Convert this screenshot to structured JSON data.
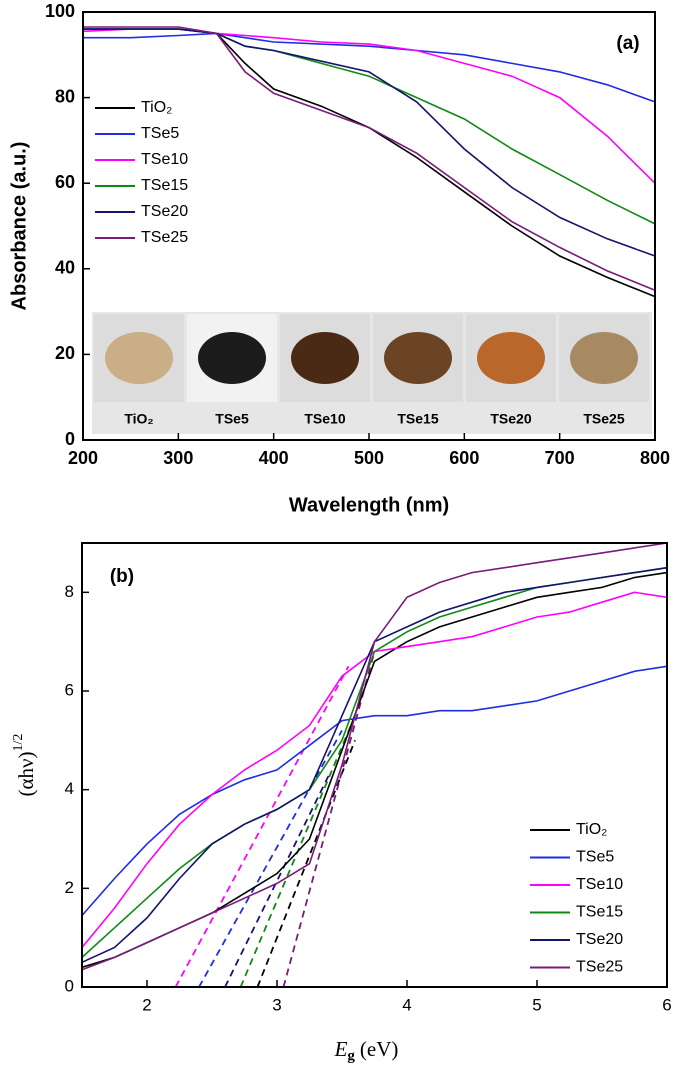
{
  "chart_data": [
    {
      "type": "line",
      "panel_label": "(a)",
      "xlabel": "Wavelength (nm)",
      "ylabel": "Absorbance (a.u.)",
      "xlim": [
        200,
        800
      ],
      "ylim": [
        0,
        100
      ],
      "xticks": [
        200,
        300,
        400,
        500,
        600,
        700,
        800
      ],
      "yticks": [
        0,
        20,
        40,
        60,
        80,
        100
      ],
      "legend": "upper left",
      "x": [
        200,
        250,
        300,
        340,
        370,
        400,
        450,
        500,
        550,
        600,
        650,
        700,
        750,
        800
      ],
      "series": [
        {
          "name": "TiO₂",
          "color": "#000000",
          "values": [
            96,
            96,
            96,
            95,
            88,
            82,
            78,
            73,
            66,
            58,
            50,
            43,
            38,
            33.5
          ]
        },
        {
          "name": "TSe5",
          "color": "#1f2ee0",
          "values": [
            94,
            94,
            94.5,
            95,
            94,
            93,
            92.5,
            92,
            91,
            90,
            88,
            86,
            83,
            79
          ]
        },
        {
          "name": "TSe10",
          "color": "#ff00ff",
          "values": [
            95.5,
            96,
            96,
            95,
            94.5,
            94,
            93,
            92.5,
            91,
            88,
            85,
            80,
            71,
            60
          ]
        },
        {
          "name": "TSe15",
          "color": "#108a10",
          "values": [
            96,
            96,
            96,
            95,
            92,
            91,
            88,
            85,
            80,
            75,
            68,
            62,
            56,
            50.5
          ]
        },
        {
          "name": "TSe20",
          "color": "#14146e",
          "values": [
            96,
            96,
            96,
            95,
            92,
            91,
            88.5,
            86,
            79,
            68,
            59,
            52,
            47,
            43
          ]
        },
        {
          "name": "TSe25",
          "color": "#7a1a7a",
          "values": [
            96.5,
            96.5,
            96.5,
            95,
            86,
            81,
            77,
            73,
            67,
            59,
            51,
            45,
            39.5,
            35
          ]
        }
      ],
      "inset_labels": [
        "TiO₂",
        "TSe5",
        "TSe10",
        "TSe15",
        "TSe20",
        "TSe25"
      ]
    },
    {
      "type": "line",
      "panel_label": "(b)",
      "xlabel": {
        "text": "E",
        "sub": "g",
        "unit": "(eV)"
      },
      "ylabel": {
        "text": "(αhν)",
        "sup": "1/2"
      },
      "xlim": [
        1.5,
        6
      ],
      "ylim": [
        0,
        9
      ],
      "xticks": [
        2,
        3,
        4,
        5,
        6
      ],
      "yticks": [
        0,
        2,
        4,
        6,
        8
      ],
      "legend": "lower right",
      "x": [
        1.5,
        1.75,
        2,
        2.25,
        2.5,
        2.75,
        3,
        3.25,
        3.5,
        3.75,
        4,
        4.25,
        4.5,
        4.75,
        5,
        5.25,
        5.5,
        5.75,
        6
      ],
      "series": [
        {
          "name": "TiO₂",
          "color": "#000000",
          "values": [
            0.4,
            0.6,
            0.9,
            1.2,
            1.5,
            1.9,
            2.3,
            3.0,
            4.8,
            6.6,
            7.0,
            7.3,
            7.5,
            7.7,
            7.9,
            8.0,
            8.1,
            8.3,
            8.4
          ],
          "tangent_x": [
            2.85,
            3.6
          ],
          "tangent_y": [
            0,
            5
          ]
        },
        {
          "name": "TSe5",
          "color": "#1f2ee0",
          "values": [
            1.45,
            2.2,
            2.9,
            3.5,
            3.9,
            4.2,
            4.4,
            4.9,
            5.4,
            5.5,
            5.5,
            5.6,
            5.6,
            5.7,
            5.8,
            6.0,
            6.2,
            6.4,
            6.5
          ],
          "tangent_x": [
            2.4,
            3.5
          ],
          "tangent_y": [
            0,
            5.2
          ]
        },
        {
          "name": "TSe10",
          "color": "#ff00ff",
          "values": [
            0.8,
            1.6,
            2.5,
            3.3,
            3.9,
            4.4,
            4.8,
            5.3,
            6.3,
            6.8,
            6.9,
            7.0,
            7.1,
            7.3,
            7.5,
            7.6,
            7.8,
            8.0,
            7.9
          ],
          "tangent_x": [
            2.22,
            3.55
          ],
          "tangent_y": [
            0,
            6.5
          ]
        },
        {
          "name": "TSe15",
          "color": "#108a10",
          "values": [
            0.6,
            1.2,
            1.8,
            2.4,
            2.9,
            3.3,
            3.6,
            4.0,
            5.0,
            6.8,
            7.2,
            7.5,
            7.7,
            7.9,
            8.1,
            8.2,
            8.3,
            8.4,
            8.5
          ],
          "tangent_x": [
            2.72,
            3.6
          ],
          "tangent_y": [
            0,
            5.5
          ]
        },
        {
          "name": "TSe20",
          "color": "#14146e",
          "values": [
            0.5,
            0.8,
            1.4,
            2.2,
            2.9,
            3.3,
            3.6,
            4.0,
            5.5,
            7.0,
            7.3,
            7.6,
            7.8,
            8.0,
            8.1,
            8.2,
            8.3,
            8.4,
            8.5
          ],
          "tangent_x": [
            2.6,
            3.4
          ],
          "tangent_y": [
            0,
            4.3
          ]
        },
        {
          "name": "TSe25",
          "color": "#7a1a7a",
          "values": [
            0.35,
            0.6,
            0.9,
            1.2,
            1.5,
            1.8,
            2.1,
            2.5,
            4.5,
            7.0,
            7.9,
            8.2,
            8.4,
            8.5,
            8.6,
            8.7,
            8.8,
            8.9,
            9.0
          ],
          "tangent_x": [
            3.05,
            3.75
          ],
          "tangent_y": [
            0,
            6.8
          ]
        }
      ]
    }
  ]
}
